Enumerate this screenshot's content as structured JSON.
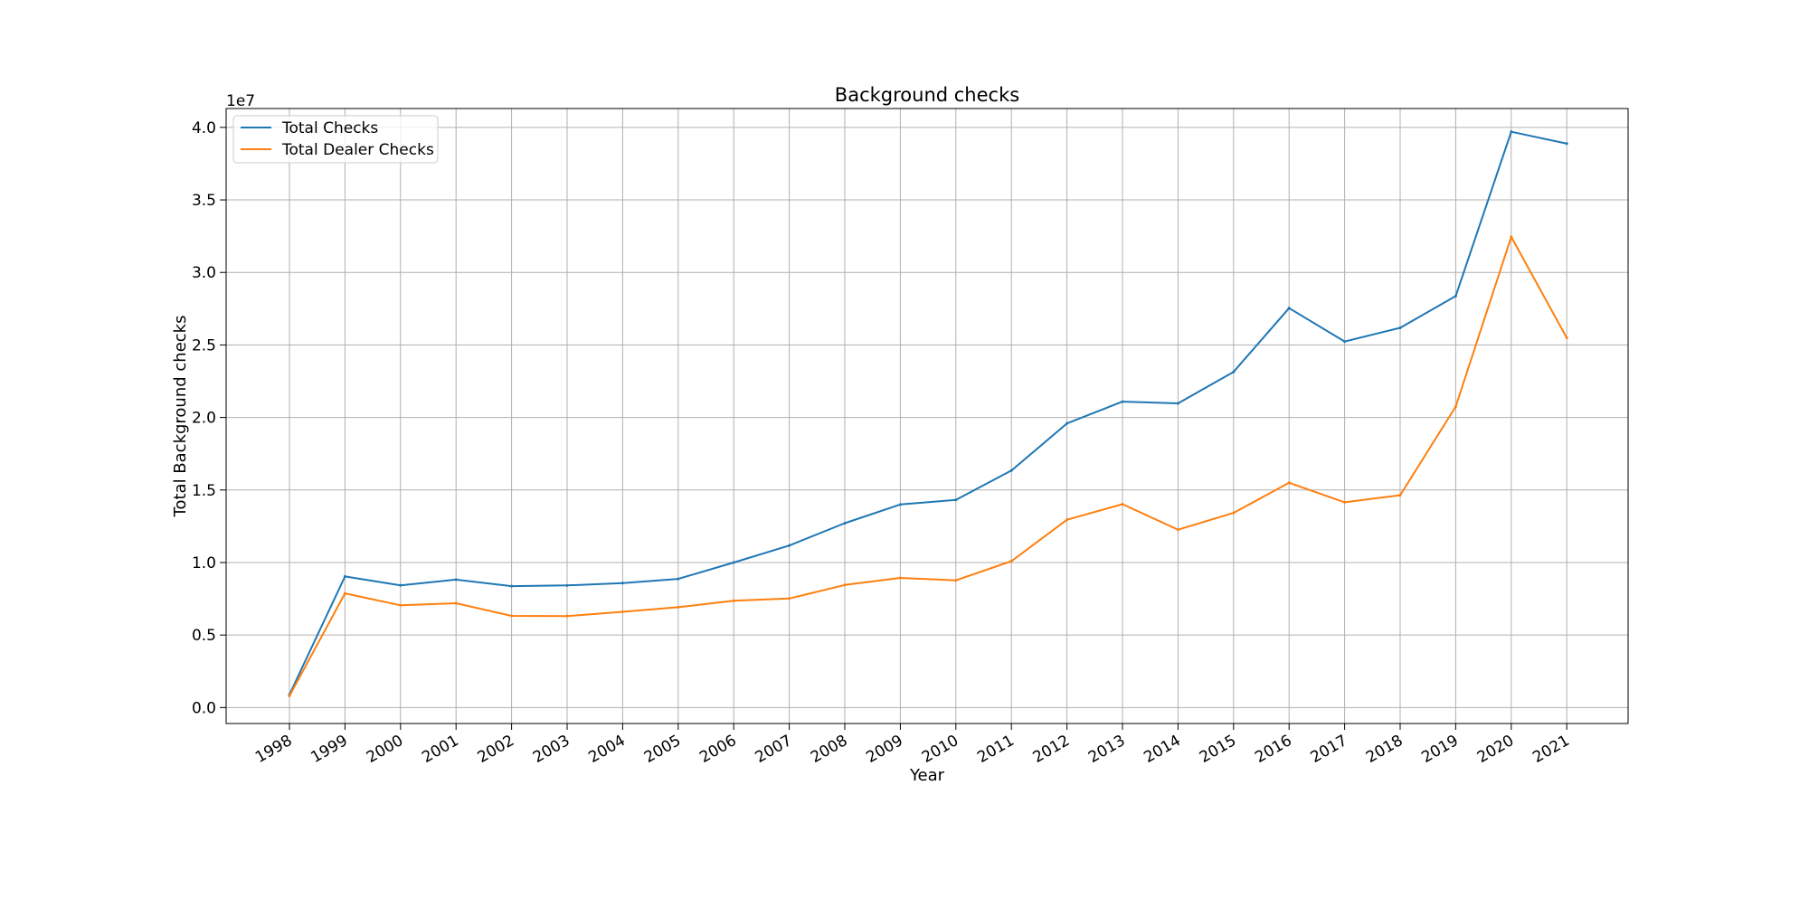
{
  "chart_data": {
    "type": "line",
    "title": "Background checks",
    "xlabel": "Year",
    "ylabel": "Total Background checks",
    "y_offset_label": "1e7",
    "x": [
      1998,
      1999,
      2000,
      2001,
      2002,
      2003,
      2004,
      2005,
      2006,
      2007,
      2008,
      2009,
      2010,
      2011,
      2012,
      2013,
      2014,
      2015,
      2016,
      2017,
      2018,
      2019,
      2020,
      2021
    ],
    "x_tick_labels": [
      "1998",
      "1999",
      "2000",
      "2001",
      "2002",
      "2003",
      "2004",
      "2005",
      "2006",
      "2007",
      "2008",
      "2009",
      "2010",
      "2011",
      "2012",
      "2013",
      "2014",
      "2015",
      "2016",
      "2017",
      "2018",
      "2019",
      "2020",
      "2021"
    ],
    "y_ticks": [
      0,
      5000000,
      10000000,
      15000000,
      20000000,
      25000000,
      30000000,
      35000000,
      40000000
    ],
    "y_tick_labels": [
      "0.0",
      "0.5",
      "1.0",
      "1.5",
      "2.0",
      "2.5",
      "3.0",
      "3.5",
      "4.0"
    ],
    "ylim": [
      -1100000,
      41300000
    ],
    "grid": true,
    "legend_position": "top-left",
    "series": [
      {
        "name": "Total Checks",
        "color": "#1f77b4",
        "values": [
          890000,
          9040000,
          8430000,
          8820000,
          8370000,
          8420000,
          8580000,
          8870000,
          10000000,
          11170000,
          12710000,
          14000000,
          14320000,
          16340000,
          19590000,
          21090000,
          20970000,
          23140000,
          27540000,
          25240000,
          26180000,
          28370000,
          39700000,
          38880000
        ]
      },
      {
        "name": "Total Dealer Checks",
        "color": "#ff7f0e",
        "values": [
          800000,
          7870000,
          7050000,
          7190000,
          6320000,
          6310000,
          6600000,
          6920000,
          7360000,
          7520000,
          8450000,
          8940000,
          8770000,
          10090000,
          12950000,
          14020000,
          12260000,
          13420000,
          15500000,
          14150000,
          14640000,
          20750000,
          32450000,
          25490000
        ]
      }
    ]
  }
}
